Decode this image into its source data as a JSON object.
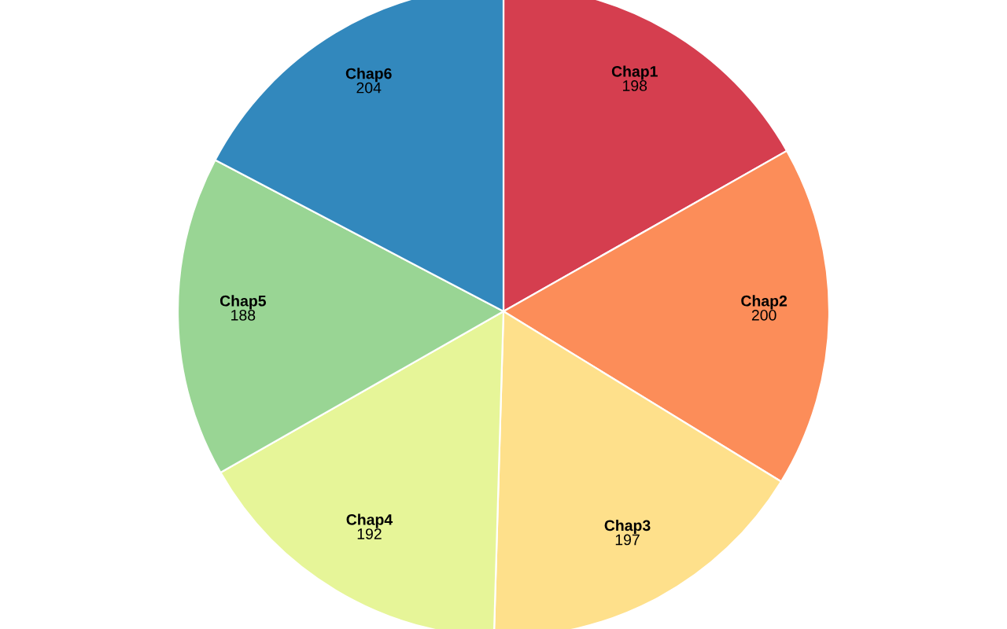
{
  "chart_data": {
    "type": "pie",
    "categories": [
      "Chap1",
      "Chap2",
      "Chap3",
      "Chap4",
      "Chap5",
      "Chap6"
    ],
    "values": [
      198,
      200,
      197,
      192,
      188,
      204
    ],
    "colors": [
      "#d53e4f",
      "#fc8d59",
      "#fee08b",
      "#e6f598",
      "#99d594",
      "#3288bd"
    ],
    "data_labels": true
  }
}
